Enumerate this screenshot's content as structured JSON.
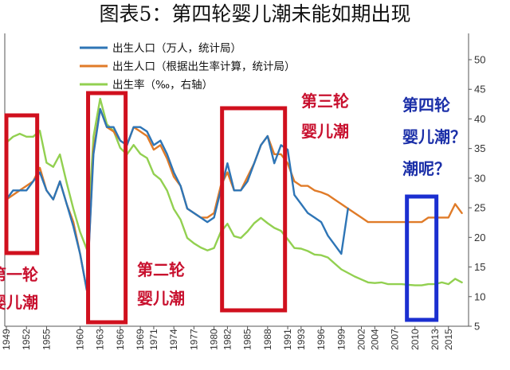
{
  "chart_data": {
    "type": "line",
    "title": "图表5：第四轮婴儿潮未能如期出现",
    "x_ticks": [
      "1949",
      "1952",
      "1955",
      "1960",
      "1963",
      "1966",
      "1969",
      "1971",
      "1974",
      "1977",
      "1980",
      "1982",
      "1985",
      "1988",
      "1991",
      "1993",
      "1996",
      "1999",
      "2002",
      "2004",
      "2007",
      "2010",
      "2013",
      "2015"
    ],
    "xlim": [
      1949,
      2018
    ],
    "y_right_ticks": [
      "5",
      "10",
      "15",
      "20",
      "25",
      "30",
      "35",
      "40",
      "45",
      "50"
    ],
    "y_right_lim": [
      5,
      50
    ],
    "legend_position": "top-left",
    "series": [
      {
        "name": "出生人口（万人，统计局）",
        "color": "#2e75b6",
        "x": [
          1949,
          1950,
          1951,
          1952,
          1953,
          1954,
          1955,
          1956,
          1957,
          1958,
          1959,
          1960,
          1961,
          1962,
          1963,
          1964,
          1965,
          1966,
          1967,
          1968,
          1969,
          1970,
          1971,
          1972,
          1973,
          1974,
          1975,
          1976,
          1977,
          1978,
          1979,
          1980,
          1981,
          1982,
          1983,
          1984,
          1985,
          1986,
          1987,
          1988,
          1989,
          1990,
          1991,
          1992,
          1993,
          1994,
          1995,
          1996,
          1997,
          1998,
          1999,
          2000
        ],
        "y": [
          1900,
          2000,
          2000,
          2000,
          2100,
          2200,
          2000,
          1900,
          2100,
          1850,
          1600,
          1300,
          900,
          2400,
          2900,
          2700,
          2700,
          2550,
          2500,
          2700,
          2700,
          2650,
          2500,
          2550,
          2400,
          2200,
          2050,
          1800,
          1750,
          1700,
          1650,
          1700,
          2000,
          2300,
          2000,
          2000,
          2100,
          2300,
          2500,
          2600,
          2300,
          2500,
          2450,
          1950,
          1850,
          1750,
          1700,
          1650,
          1500,
          1400,
          1300,
          1800
        ]
      },
      {
        "name": "出生人口（根据出生率计算，统计局）",
        "color": "#e07b28",
        "x": [
          1949,
          1950,
          1951,
          1952,
          1953,
          1954,
          1955,
          1956,
          1957,
          1958,
          1959,
          1960,
          1961,
          1962,
          1963,
          1964,
          1965,
          1966,
          1967,
          1968,
          1969,
          1970,
          1971,
          1972,
          1973,
          1974,
          1975,
          1976,
          1977,
          1978,
          1979,
          1980,
          1981,
          1982,
          1983,
          1984,
          1985,
          1986,
          1987,
          1988,
          1989,
          1990,
          1991,
          1992,
          1993,
          1994,
          1995,
          1996,
          1997,
          1998,
          1999,
          2000,
          2001,
          2002,
          2003,
          2004,
          2005,
          2006,
          2007,
          2008,
          2009,
          2010,
          2011,
          2012,
          2013,
          2014,
          2015,
          2016,
          2017
        ],
        "y": [
          1900,
          1950,
          2000,
          2050,
          2100,
          2250,
          2000,
          1900,
          2100,
          1850,
          1650,
          1300,
          900,
          2450,
          2900,
          2700,
          2650,
          2550,
          2500,
          2700,
          2650,
          2600,
          2450,
          2500,
          2350,
          2150,
          2050,
          1800,
          1750,
          1700,
          1700,
          1750,
          2050,
          2200,
          2000,
          2000,
          2150,
          2300,
          2500,
          2600,
          2400,
          2400,
          2300,
          2100,
          2050,
          2050,
          2000,
          1980,
          1950,
          1900,
          1850,
          1800,
          1750,
          1700,
          1650,
          1650,
          1650,
          1650,
          1650,
          1650,
          1650,
          1650,
          1650,
          1700,
          1700,
          1700,
          1700,
          1850,
          1750
        ]
      },
      {
        "name": "出生率（‰，右轴）",
        "color": "#92d050",
        "x": [
          1949,
          1950,
          1951,
          1952,
          1953,
          1954,
          1955,
          1956,
          1957,
          1958,
          1959,
          1960,
          1961,
          1962,
          1963,
          1964,
          1965,
          1966,
          1967,
          1968,
          1969,
          1970,
          1971,
          1972,
          1973,
          1974,
          1975,
          1976,
          1977,
          1978,
          1979,
          1980,
          1981,
          1982,
          1983,
          1984,
          1985,
          1986,
          1987,
          1988,
          1989,
          1990,
          1991,
          1992,
          1993,
          1994,
          1995,
          1996,
          1997,
          1998,
          1999,
          2000,
          2001,
          2002,
          2003,
          2004,
          2005,
          2006,
          2007,
          2008,
          2009,
          2010,
          2011,
          2012,
          2013,
          2014,
          2015,
          2016,
          2017
        ],
        "y": [
          36,
          37,
          37.5,
          37,
          37,
          38,
          32.6,
          31.9,
          34,
          29.2,
          24.8,
          20.9,
          18,
          37,
          43.4,
          39.1,
          38,
          35.1,
          34,
          35.6,
          34.1,
          33.4,
          30.7,
          29.8,
          27.9,
          24.8,
          23,
          19.9,
          19,
          18.3,
          17.8,
          18.2,
          20.9,
          22.3,
          20.2,
          19.9,
          21,
          22.4,
          23.3,
          22.4,
          21.6,
          21.1,
          19.7,
          18.2,
          18.1,
          17.7,
          17.1,
          17,
          16.6,
          15.6,
          14.6,
          14,
          13.4,
          12.9,
          12.4,
          12.3,
          12.4,
          12.1,
          12.1,
          12.1,
          12,
          11.9,
          11.9,
          12.1,
          12.1,
          12.4,
          12.1,
          13,
          12.4
        ]
      }
    ],
    "annotations": [
      {
        "id": "wave1",
        "lines": [
          "第一轮",
          "婴儿潮"
        ],
        "color": "#c8102e"
      },
      {
        "id": "wave2",
        "lines": [
          "第二轮",
          "婴儿潮"
        ],
        "color": "#c8102e"
      },
      {
        "id": "wave3",
        "lines": [
          "第三轮",
          "婴儿潮"
        ],
        "color": "#c8102e"
      },
      {
        "id": "wave4",
        "lines": [
          "第四轮",
          "婴儿潮？",
          "潮呢？"
        ],
        "color": "#1b2fa8"
      }
    ]
  }
}
